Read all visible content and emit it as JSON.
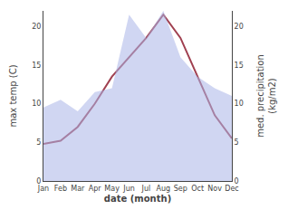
{
  "chart_data": {
    "type": "line",
    "categories": [
      "Jan",
      "Feb",
      "Mar",
      "Apr",
      "May",
      "Jun",
      "Jul",
      "Aug",
      "Sep",
      "Oct",
      "Nov",
      "Dec"
    ],
    "series": [
      {
        "type": "area",
        "color": "#aab4e8",
        "axis": "y2",
        "values": [
          9.5,
          10.5,
          9.0,
          11.5,
          12.0,
          21.5,
          18.5,
          22.0,
          16.0,
          13.5,
          12.0,
          11.0
        ]
      },
      {
        "type": "line",
        "color": "#a04050",
        "values": [
          4.8,
          5.2,
          7.0,
          10.0,
          13.5,
          16.0,
          18.5,
          21.5,
          18.5,
          13.5,
          8.5,
          5.5
        ]
      }
    ],
    "xlabel": "date (month)",
    "ylabel": "max temp (C)",
    "y2label": "med. precipitation\n(kg/m2)",
    "ylim": [
      0,
      22
    ],
    "yticks": [
      0,
      5,
      10,
      15,
      20
    ],
    "y2lim": [
      0,
      22
    ],
    "y2ticks": [
      0,
      5,
      10,
      15,
      20
    ],
    "grid": false
  }
}
